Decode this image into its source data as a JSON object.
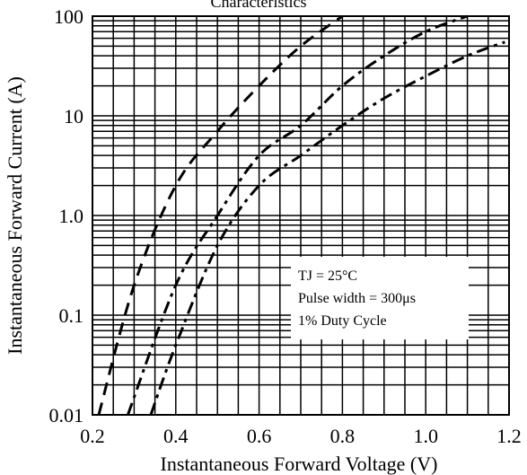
{
  "chart_data": {
    "type": "line",
    "title": "Characteristics",
    "xlabel": "Instantaneous Forward Voltage (V)",
    "ylabel": "Instantaneous Forward Current (A)",
    "xlim": [
      0.2,
      1.2
    ],
    "ylim": [
      0.01,
      100
    ],
    "yscale": "log",
    "grid": true,
    "x_ticks": [
      0.2,
      0.4,
      0.6,
      0.8,
      1.0,
      1.2
    ],
    "x_tick_labels": [
      "0.2",
      "0.4",
      "0.6",
      "0.8",
      "1.0",
      "1.2"
    ],
    "y_ticks": [
      0.01,
      0.1,
      1,
      10,
      100
    ],
    "y_tick_labels": [
      "0.01",
      "0.1",
      "1.0",
      "10",
      "100"
    ],
    "annotation": {
      "lines": [
        "TJ = 25°C",
        "Pulse width = 300μs",
        "1% Duty Cycle"
      ]
    },
    "series": [
      {
        "line_style": "dashed",
        "x": [
          0.215,
          0.3,
          0.4,
          0.5,
          0.6,
          0.7,
          0.8
        ],
        "y": [
          0.01,
          0.2,
          2,
          7,
          20,
          50,
          100
        ]
      },
      {
        "line_style": "dash-dot",
        "x": [
          0.285,
          0.4,
          0.5,
          0.6,
          0.7,
          0.8,
          0.9,
          1.0,
          1.1
        ],
        "y": [
          0.01,
          0.2,
          1,
          4,
          8,
          20,
          40,
          70,
          100
        ]
      },
      {
        "line_style": "dash-dot",
        "x": [
          0.34,
          0.4,
          0.5,
          0.6,
          0.7,
          0.8,
          0.9,
          1.0,
          1.1,
          1.19
        ],
        "y": [
          0.01,
          0.05,
          0.5,
          2,
          4,
          8,
          15,
          25,
          40,
          55
        ]
      }
    ]
  }
}
